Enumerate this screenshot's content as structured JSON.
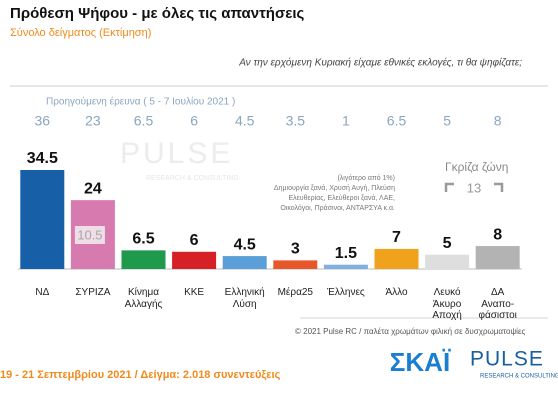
{
  "chart_data": {
    "type": "bar",
    "title": "Πρόθεση Ψήφου - με όλες τις απαντήσεις",
    "subtitle": "Σύνολο δείγματος  (Εκτίμηση)",
    "question": "Αν την ερχόμενη Κυριακή είχαμε εθνικές εκλογές, τι θα ψηφίζατε;",
    "previous_label": "Προηγούμενη έρευνα  ( 5 - 7 Ιουλίου 2021 )",
    "categories": [
      "ΝΔ",
      "ΣΥΡΙΖΑ",
      "Κίνημα\nΑλλαγής",
      "ΚΚΕ",
      "Ελληνική\nΛύση",
      "Μέρα25",
      "Έλληνες",
      "Άλλο",
      "Λευκό\nΆκυρο\nΑποχή",
      "ΔΑ\nΑναπο-\nφάσιστοι"
    ],
    "series": [
      {
        "name": "Προηγούμενη έρευνα",
        "values": [
          36,
          23,
          6.5,
          6,
          4.5,
          3.5,
          1,
          6.5,
          5,
          8
        ]
      },
      {
        "name": "Εκτίμηση",
        "values": [
          34.5,
          24,
          6.5,
          6,
          4.5,
          3,
          1.5,
          7,
          5,
          8
        ],
        "colors": [
          "#1760a8",
          "#d77ab0",
          "#1f9a4c",
          "#d71f26",
          "#5b9fd8",
          "#e8572a",
          "#7fb0e0",
          "#f0a21d",
          "#dedede",
          "#b3b3b3"
        ]
      }
    ],
    "lead": 10.5,
    "note_title": "(λιγότερο από 1%)",
    "note": "Δημιουργία ξανά, Χρυσή Αυγή, Πλεύση\nΕλευθερίας, Ελεύθεροι ξανά, ΛΑΕ,\nΟικολόγοι, Πράσινοι, ΑΝΤΑΡΣΥΑ  κ.α.",
    "grey_zone_label": "Γκρίζα ζώνη",
    "grey_zone": 13,
    "copyright": "© 2021 Pulse RC  /  παλέτα χρωμάτων φιλική σε δυσχρωματοψίες",
    "footer": "19 - 21 Σεπτεμβρίου 2021  /  Δείγμα: 2.018 συνεντεύξεις",
    "logo_skai": "ΣΚΑΪ",
    "logo_pulse": "PULSE",
    "logo_pulse_sub": "RESEARCH & CONSULTING"
  }
}
